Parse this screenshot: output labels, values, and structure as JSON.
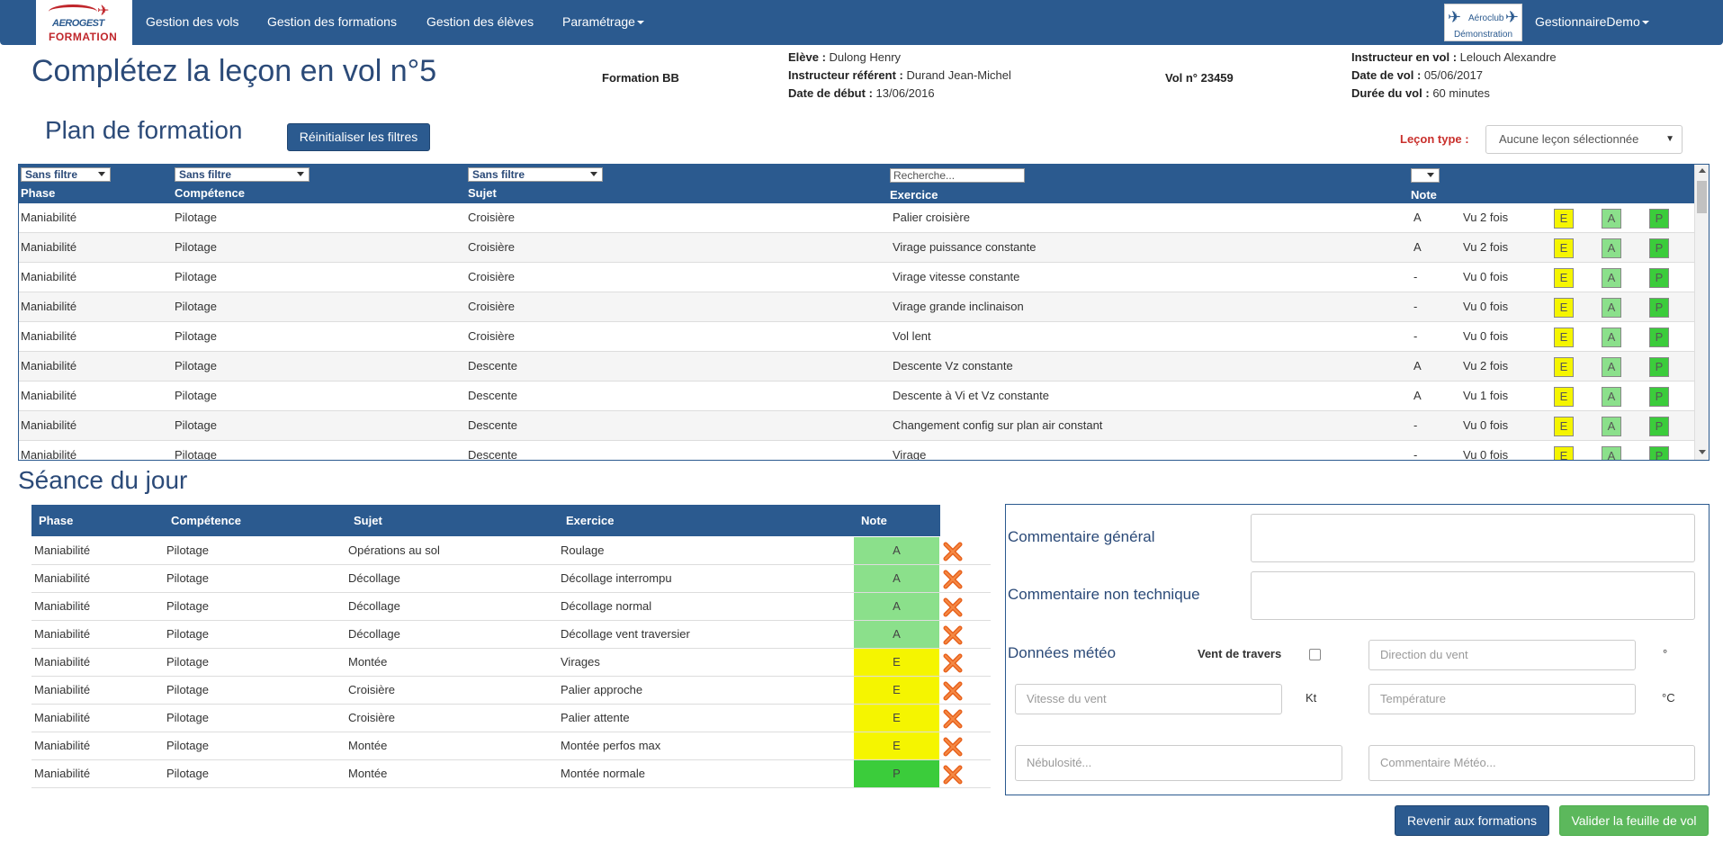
{
  "nav": {
    "logo_top": "AEROGEST",
    "logo_bottom": "FORMATION",
    "items": [
      "Gestion des vols",
      "Gestion des formations",
      "Gestion des élèves",
      "Paramétrage"
    ],
    "club_line1": "Aéroclub",
    "club_line2": "Démonstration",
    "user": "GestionnaireDemo"
  },
  "header": {
    "title": "Complétez la leçon en vol n°5",
    "formation": "Formation BB",
    "eleve_label": "Elève :",
    "eleve": "Dulong Henry",
    "instructeur_ref_label": "Instructeur référent :",
    "instructeur_ref": "Durand Jean-Michel",
    "date_debut_label": "Date de début :",
    "date_debut": "13/06/2016",
    "vol_label": "Vol n° 23459",
    "instructeur_vol_label": "Instructeur en vol :",
    "instructeur_vol": "Lelouch Alexandre",
    "date_vol_label": "Date de vol :",
    "date_vol": "05/06/2017",
    "duree_label": "Durée du vol :",
    "duree": "60 minutes"
  },
  "plan": {
    "title": "Plan de formation",
    "reset_label": "Réinitialiser les filtres",
    "lecon_type_label": "Leçon type :",
    "lecon_type_value": "Aucune leçon sélectionnée",
    "filters": {
      "phase": "Sans filtre",
      "competence": "Sans filtre",
      "sujet": "Sans filtre",
      "search_placeholder": "Recherche..."
    },
    "columns": {
      "phase": "Phase",
      "competence": "Compétence",
      "sujet": "Sujet",
      "exercice": "Exercice",
      "note": "Note"
    },
    "grade_buttons": {
      "e": "E",
      "a": "A",
      "p": "P"
    },
    "rows": [
      {
        "phase": "Maniabilité",
        "competence": "Pilotage",
        "sujet": "Croisière",
        "exercice": "Palier croisière",
        "note": "A",
        "vu": "Vu 2 fois"
      },
      {
        "phase": "Maniabilité",
        "competence": "Pilotage",
        "sujet": "Croisière",
        "exercice": "Virage puissance constante",
        "note": "A",
        "vu": "Vu 2 fois"
      },
      {
        "phase": "Maniabilité",
        "competence": "Pilotage",
        "sujet": "Croisière",
        "exercice": "Virage vitesse constante",
        "note": "-",
        "vu": "Vu 0 fois"
      },
      {
        "phase": "Maniabilité",
        "competence": "Pilotage",
        "sujet": "Croisière",
        "exercice": "Virage grande inclinaison",
        "note": "-",
        "vu": "Vu 0 fois"
      },
      {
        "phase": "Maniabilité",
        "competence": "Pilotage",
        "sujet": "Croisière",
        "exercice": "Vol lent",
        "note": "-",
        "vu": "Vu 0 fois"
      },
      {
        "phase": "Maniabilité",
        "competence": "Pilotage",
        "sujet": "Descente",
        "exercice": "Descente Vz constante",
        "note": "A",
        "vu": "Vu 2 fois"
      },
      {
        "phase": "Maniabilité",
        "competence": "Pilotage",
        "sujet": "Descente",
        "exercice": "Descente à Vi et Vz constante",
        "note": "A",
        "vu": "Vu 1 fois"
      },
      {
        "phase": "Maniabilité",
        "competence": "Pilotage",
        "sujet": "Descente",
        "exercice": "Changement config sur plan air constant",
        "note": "-",
        "vu": "Vu 0 fois"
      },
      {
        "phase": "Maniabilité",
        "competence": "Pilotage",
        "sujet": "Descente",
        "exercice": "Virage",
        "note": "-",
        "vu": "Vu 0 fois"
      }
    ]
  },
  "seance": {
    "title": "Séance du jour",
    "columns": {
      "phase": "Phase",
      "competence": "Compétence",
      "sujet": "Sujet",
      "exercice": "Exercice",
      "note": "Note"
    },
    "rows": [
      {
        "phase": "Maniabilité",
        "competence": "Pilotage",
        "sujet": "Opérations au sol",
        "exercice": "Roulage",
        "note": "A"
      },
      {
        "phase": "Maniabilité",
        "competence": "Pilotage",
        "sujet": "Décollage",
        "exercice": "Décollage interrompu",
        "note": "A"
      },
      {
        "phase": "Maniabilité",
        "competence": "Pilotage",
        "sujet": "Décollage",
        "exercice": "Décollage normal",
        "note": "A"
      },
      {
        "phase": "Maniabilité",
        "competence": "Pilotage",
        "sujet": "Décollage",
        "exercice": "Décollage vent traversier",
        "note": "A"
      },
      {
        "phase": "Maniabilité",
        "competence": "Pilotage",
        "sujet": "Montée",
        "exercice": "Virages",
        "note": "E"
      },
      {
        "phase": "Maniabilité",
        "competence": "Pilotage",
        "sujet": "Croisière",
        "exercice": "Palier approche",
        "note": "E"
      },
      {
        "phase": "Maniabilité",
        "competence": "Pilotage",
        "sujet": "Croisière",
        "exercice": "Palier attente",
        "note": "E"
      },
      {
        "phase": "Maniabilité",
        "competence": "Pilotage",
        "sujet": "Montée",
        "exercice": "Montée perfos max",
        "note": "E"
      },
      {
        "phase": "Maniabilité",
        "competence": "Pilotage",
        "sujet": "Montée",
        "exercice": "Montée normale",
        "note": "P"
      }
    ]
  },
  "comments": {
    "general_label": "Commentaire général",
    "non_tech_label": "Commentaire non technique",
    "meteo_label": "Données météo",
    "vent_travers_label": "Vent de travers",
    "direction_placeholder": "Direction du vent",
    "direction_unit": "°",
    "vitesse_placeholder": "Vitesse du vent",
    "vitesse_unit": "Kt",
    "temperature_placeholder": "Température",
    "temperature_unit": "°C",
    "nebulosite_placeholder": "Nébulosité...",
    "meteo_comment_placeholder": "Commentaire Météo..."
  },
  "actions": {
    "back_label": "Revenir aux formations",
    "validate_label": "Valider la feuille de vol"
  },
  "colors": {
    "primary": "#2b5a8f",
    "grade_e": "#f5f500",
    "grade_a": "#8be08b",
    "grade_p": "#3bcc3b",
    "delete": "#e8611c"
  }
}
